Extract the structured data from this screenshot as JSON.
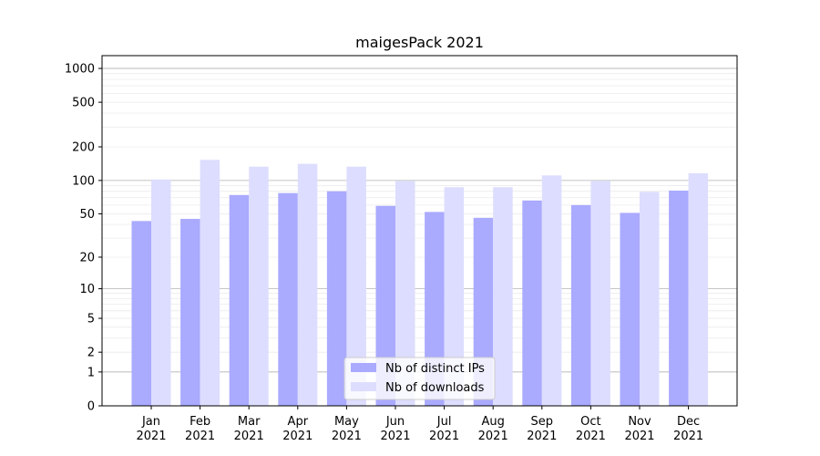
{
  "chart_data": {
    "type": "bar",
    "title": "maigesPack 2021",
    "xlabel": "",
    "ylabel": "",
    "yscale": "symlog",
    "ylim": [
      0,
      1300
    ],
    "yticks": [
      0,
      1,
      2,
      5,
      10,
      20,
      50,
      100,
      200,
      500,
      1000
    ],
    "grid": true,
    "legend_position": "bottom-center",
    "categories": [
      [
        "Jan",
        "2021"
      ],
      [
        "Feb",
        "2021"
      ],
      [
        "Mar",
        "2021"
      ],
      [
        "Apr",
        "2021"
      ],
      [
        "May",
        "2021"
      ],
      [
        "Jun",
        "2021"
      ],
      [
        "Jul",
        "2021"
      ],
      [
        "Aug",
        "2021"
      ],
      [
        "Sep",
        "2021"
      ],
      [
        "Oct",
        "2021"
      ],
      [
        "Nov",
        "2021"
      ],
      [
        "Dec",
        "2021"
      ]
    ],
    "series": [
      {
        "name": "Nb of distinct IPs",
        "color": "#aaaaff",
        "values": [
          43,
          45,
          74,
          77,
          80,
          59,
          52,
          46,
          66,
          60,
          51,
          81
        ]
      },
      {
        "name": "Nb of downloads",
        "color": "#ddddff",
        "values": [
          102,
          153,
          133,
          141,
          133,
          99,
          87,
          87,
          111,
          99,
          79,
          116
        ]
      }
    ]
  }
}
